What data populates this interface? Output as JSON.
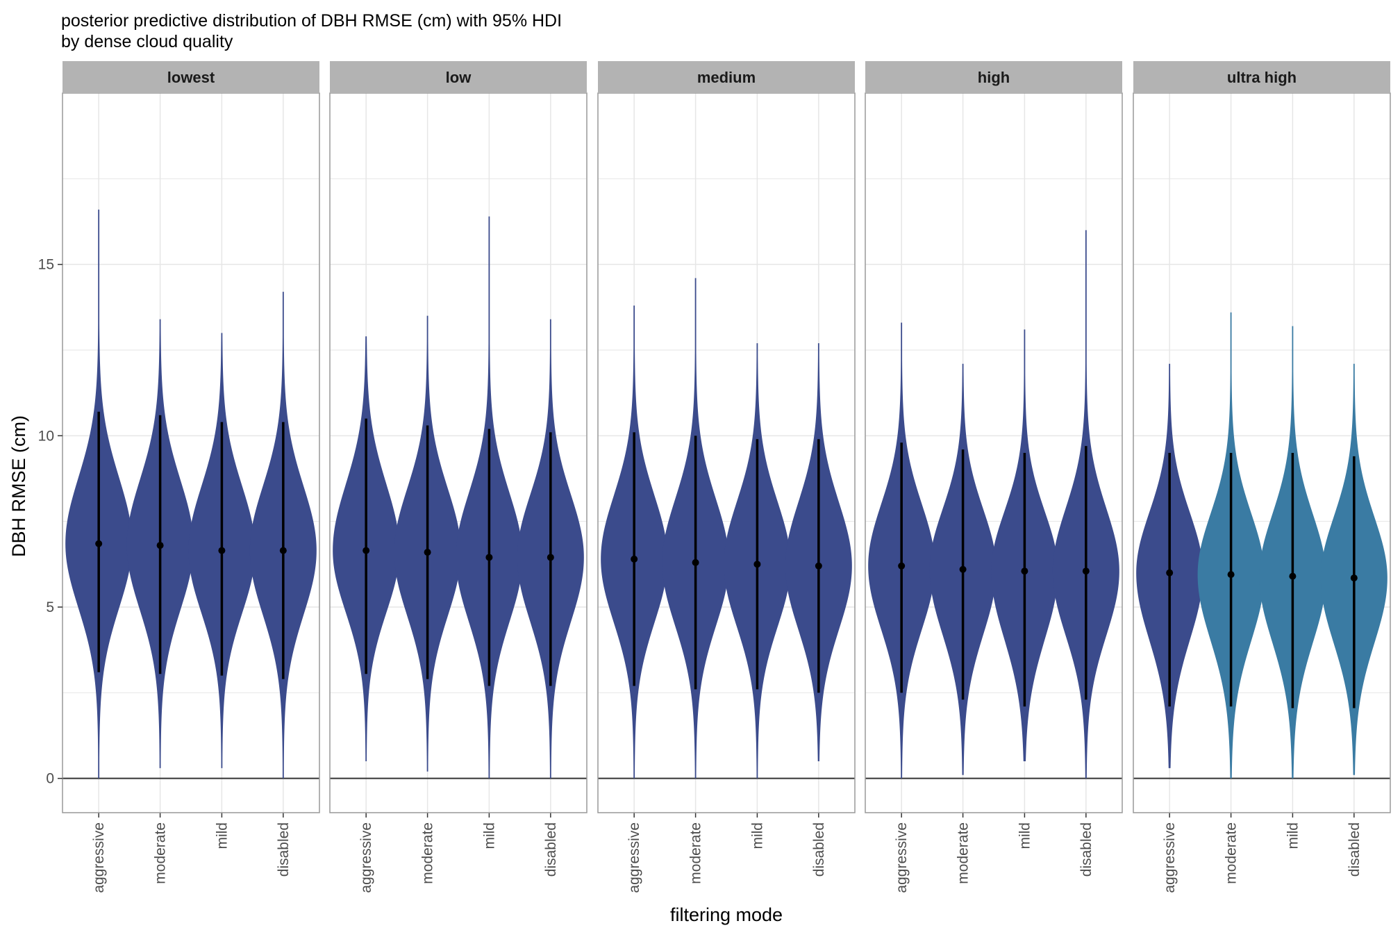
{
  "chart_data": {
    "type": "violin",
    "title": "posterior predictive distribution of DBH RMSE (cm) with 95% HDI",
    "subtitle": "by dense cloud quality",
    "xlabel": "filtering mode",
    "ylabel": "DBH RMSE (cm)",
    "ylim": [
      -1,
      20
    ],
    "yticks": [
      0,
      5,
      10,
      15
    ],
    "categories": [
      "aggressive",
      "moderate",
      "mild",
      "disabled"
    ],
    "grid": true,
    "reference_line": 0,
    "colors": {
      "dark": "#3b4b8c",
      "light": "#3a7ba3",
      "strip_bg": "#b3b3b3",
      "grid": "#e6e6e6"
    },
    "panels": [
      {
        "name": "lowest",
        "violins": [
          {
            "category": "aggressive",
            "median": 6.85,
            "hdi": [
              3.1,
              10.7
            ],
            "range": [
              0.0,
              16.6
            ],
            "color": "dark"
          },
          {
            "category": "moderate",
            "median": 6.8,
            "hdi": [
              3.05,
              10.6
            ],
            "range": [
              0.3,
              13.4
            ],
            "color": "dark"
          },
          {
            "category": "mild",
            "median": 6.65,
            "hdi": [
              3.0,
              10.4
            ],
            "range": [
              0.3,
              13.0
            ],
            "color": "dark"
          },
          {
            "category": "disabled",
            "median": 6.65,
            "hdi": [
              2.9,
              10.4
            ],
            "range": [
              0.0,
              14.2
            ],
            "color": "dark"
          }
        ]
      },
      {
        "name": "low",
        "violins": [
          {
            "category": "aggressive",
            "median": 6.65,
            "hdi": [
              3.05,
              10.5
            ],
            "range": [
              0.5,
              12.9
            ],
            "color": "dark"
          },
          {
            "category": "moderate",
            "median": 6.6,
            "hdi": [
              2.9,
              10.3
            ],
            "range": [
              0.2,
              13.5
            ],
            "color": "dark"
          },
          {
            "category": "mild",
            "median": 6.45,
            "hdi": [
              2.7,
              10.2
            ],
            "range": [
              0.0,
              16.4
            ],
            "color": "dark"
          },
          {
            "category": "disabled",
            "median": 6.45,
            "hdi": [
              2.7,
              10.1
            ],
            "range": [
              0.0,
              13.4
            ],
            "color": "dark"
          }
        ]
      },
      {
        "name": "medium",
        "violins": [
          {
            "category": "aggressive",
            "median": 6.4,
            "hdi": [
              2.7,
              10.1
            ],
            "range": [
              0.0,
              13.8
            ],
            "color": "dark"
          },
          {
            "category": "moderate",
            "median": 6.3,
            "hdi": [
              2.6,
              10.0
            ],
            "range": [
              0.0,
              14.6
            ],
            "color": "dark"
          },
          {
            "category": "mild",
            "median": 6.25,
            "hdi": [
              2.6,
              9.9
            ],
            "range": [
              0.0,
              12.7
            ],
            "color": "dark"
          },
          {
            "category": "disabled",
            "median": 6.2,
            "hdi": [
              2.5,
              9.9
            ],
            "range": [
              0.5,
              12.7
            ],
            "color": "dark"
          }
        ]
      },
      {
        "name": "high",
        "violins": [
          {
            "category": "aggressive",
            "median": 6.2,
            "hdi": [
              2.5,
              9.8
            ],
            "range": [
              0.0,
              13.3
            ],
            "color": "dark"
          },
          {
            "category": "moderate",
            "median": 6.1,
            "hdi": [
              2.3,
              9.6
            ],
            "range": [
              0.1,
              12.1
            ],
            "color": "dark"
          },
          {
            "category": "mild",
            "median": 6.05,
            "hdi": [
              2.1,
              9.5
            ],
            "range": [
              0.5,
              13.1
            ],
            "color": "dark"
          },
          {
            "category": "disabled",
            "median": 6.05,
            "hdi": [
              2.3,
              9.7
            ],
            "range": [
              0.0,
              16.0
            ],
            "color": "dark"
          }
        ]
      },
      {
        "name": "ultra high",
        "violins": [
          {
            "category": "aggressive",
            "median": 6.0,
            "hdi": [
              2.1,
              9.5
            ],
            "range": [
              0.3,
              12.1
            ],
            "color": "dark"
          },
          {
            "category": "moderate",
            "median": 5.95,
            "hdi": [
              2.1,
              9.5
            ],
            "range": [
              0.0,
              13.6
            ],
            "color": "light"
          },
          {
            "category": "mild",
            "median": 5.9,
            "hdi": [
              2.05,
              9.5
            ],
            "range": [
              0.0,
              13.2
            ],
            "color": "light"
          },
          {
            "category": "disabled",
            "median": 5.85,
            "hdi": [
              2.05,
              9.4
            ],
            "range": [
              0.1,
              12.1
            ],
            "color": "light"
          }
        ]
      }
    ]
  }
}
